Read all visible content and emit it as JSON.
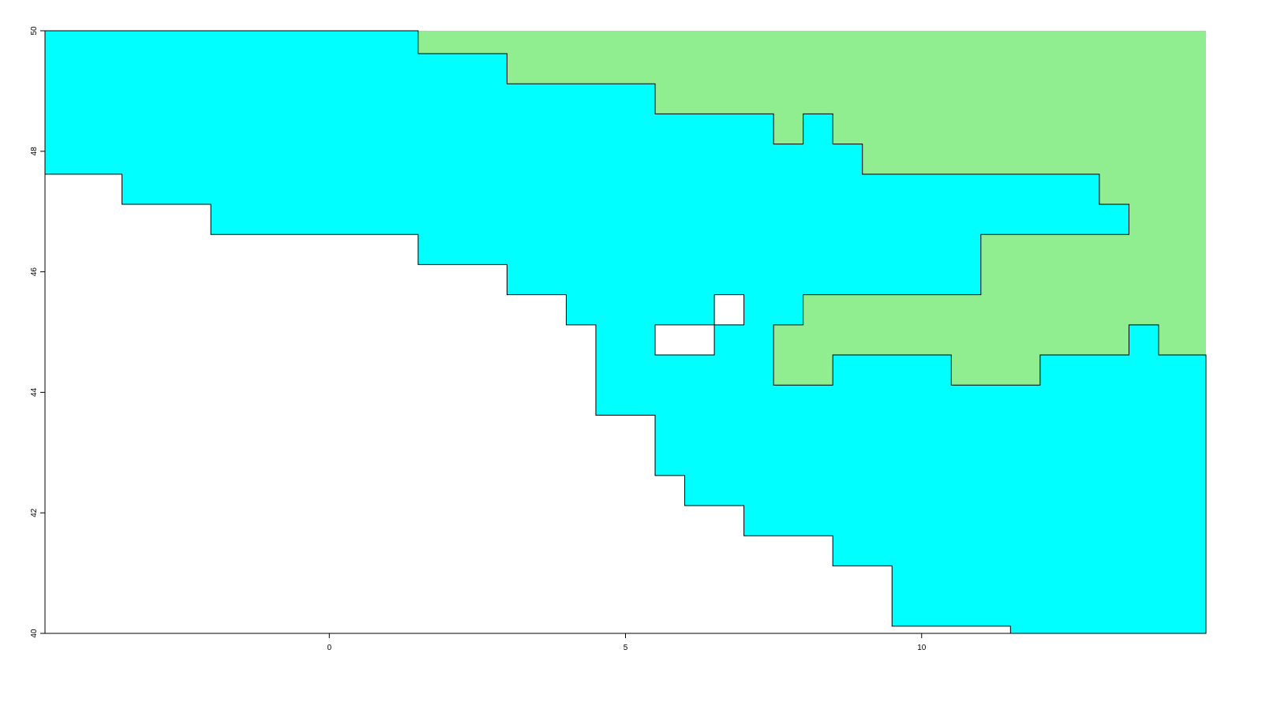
{
  "chart_data": {
    "type": "polygon",
    "xlim": [
      -4.8,
      14.8
    ],
    "ylim": [
      40,
      50
    ],
    "xticks": [
      0,
      5,
      10
    ],
    "yticks": [
      40,
      42,
      44,
      46,
      48,
      50
    ],
    "polygons": [
      {
        "color": "#90ee90",
        "outline": false,
        "x": [
          1.5,
          1.5,
          3,
          3,
          5.5,
          5.5,
          7.5,
          7.5,
          8,
          8,
          8.5,
          8.5,
          9,
          9,
          13,
          13,
          13.5,
          13.5,
          11,
          11,
          8,
          8,
          7.5,
          7.5,
          8.5,
          8.5,
          10.5,
          10.5,
          12,
          12,
          13.5,
          13.5,
          14,
          14,
          14.8,
          14.8
        ],
        "y": [
          50,
          49.62,
          49.62,
          49.12,
          49.12,
          48.62,
          48.62,
          48.12,
          48.12,
          48.62,
          48.62,
          48.12,
          48.12,
          47.62,
          47.62,
          47.12,
          47.12,
          46.62,
          46.62,
          45.62,
          45.62,
          45.12,
          45.12,
          44.12,
          44.12,
          44.62,
          44.62,
          44.12,
          44.12,
          44.62,
          44.62,
          45.12,
          45.12,
          44.62,
          44.62,
          50
        ]
      },
      {
        "color": "#00ffff",
        "outline": true,
        "x": [
          -4.8,
          1.5,
          1.5,
          3,
          3,
          5.5,
          5.5,
          7.5,
          7.5,
          8,
          8,
          8.5,
          8.5,
          9,
          9,
          13,
          13,
          13.5,
          13.5,
          11,
          11,
          8,
          8,
          7.5,
          7.5,
          8.5,
          8.5,
          10.5,
          10.5,
          12,
          12,
          13.5,
          13.5,
          14,
          14,
          14.8,
          14.8,
          11.5,
          11.5,
          9.5,
          9.5,
          8.5,
          8.5,
          7,
          7,
          6,
          6,
          5.5,
          5.5,
          4.5,
          4.5,
          4,
          4,
          3,
          3,
          1.5,
          1.5,
          -2,
          -2,
          -3.5,
          -3.5,
          -4.8
        ],
        "y": [
          50,
          50,
          49.62,
          49.62,
          49.12,
          49.12,
          48.62,
          48.62,
          48.12,
          48.12,
          48.62,
          48.62,
          48.12,
          48.12,
          47.62,
          47.62,
          47.12,
          47.12,
          46.62,
          46.62,
          45.62,
          45.62,
          45.12,
          45.12,
          44.12,
          44.12,
          44.62,
          44.62,
          44.12,
          44.12,
          44.62,
          44.62,
          45.12,
          45.12,
          44.62,
          44.62,
          40,
          40,
          40.12,
          40.12,
          41.12,
          41.12,
          41.62,
          41.62,
          42.12,
          42.12,
          42.62,
          42.62,
          43.62,
          43.62,
          45.12,
          45.12,
          45.62,
          45.62,
          46.12,
          46.12,
          46.62,
          46.62,
          47.12,
          47.12,
          47.62,
          47.62
        ]
      },
      {
        "color": "#ffffff",
        "outline": true,
        "x": [
          5.5,
          6.5,
          6.5,
          5.5
        ],
        "y": [
          44.62,
          44.62,
          45.12,
          45.12
        ]
      },
      {
        "color": "#ffffff",
        "outline": true,
        "x": [
          6.5,
          7,
          7,
          6.5
        ],
        "y": [
          45.12,
          45.12,
          45.62,
          45.62
        ]
      }
    ]
  }
}
